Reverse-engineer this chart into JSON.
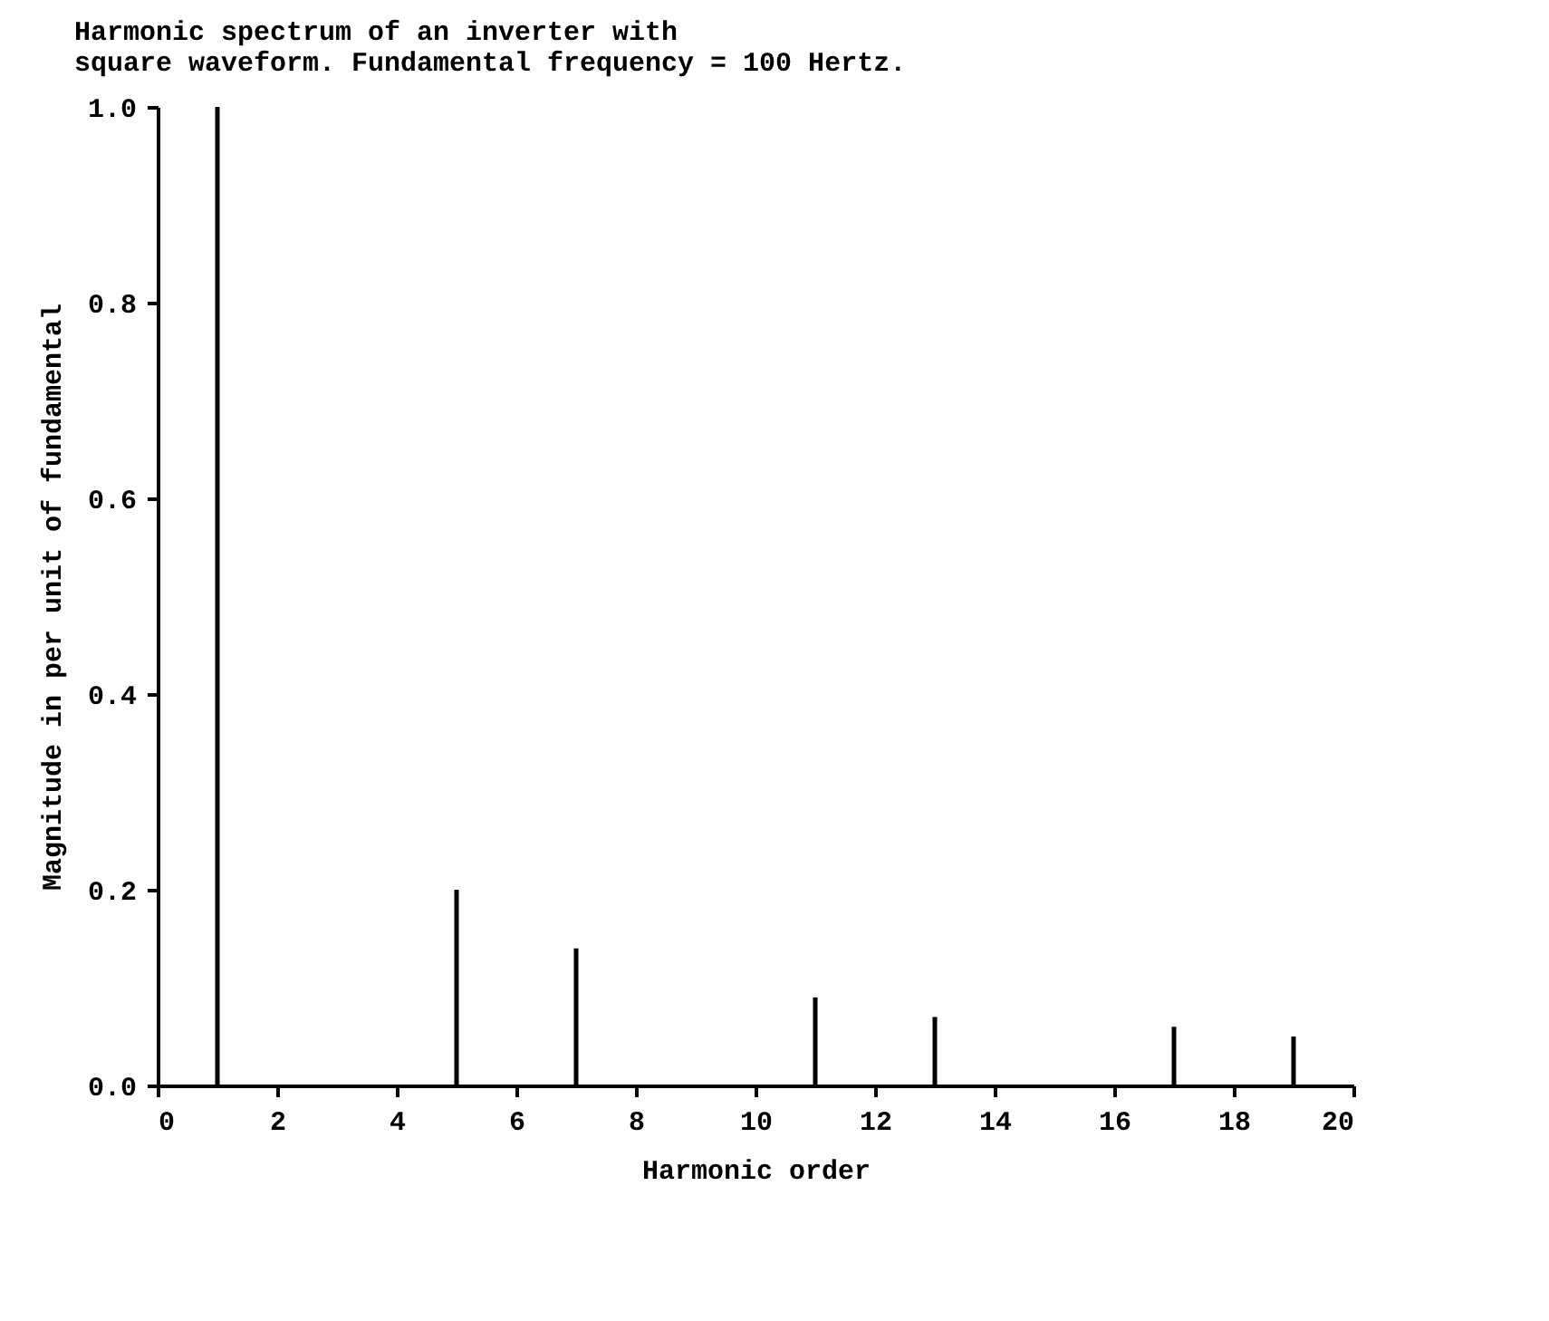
{
  "chart_data": {
    "type": "bar",
    "title": "Harmonic spectrum of an inverter with\nsquare waveform.  Fundamental frequency = 100 Hertz.",
    "xlabel": "Harmonic order",
    "ylabel": "Magnitude in per unit of fundamental",
    "x": [
      1,
      5,
      7,
      11,
      13,
      17,
      19
    ],
    "values": [
      1.0,
      0.2,
      0.14,
      0.09,
      0.07,
      0.06,
      0.05
    ],
    "color": "#000000",
    "xlim": [
      0,
      20
    ],
    "xticks": [
      0,
      2,
      4,
      6,
      8,
      10,
      12,
      14,
      16,
      18,
      20
    ],
    "ylim": [
      0,
      1.0
    ],
    "yticks": [
      {
        "value": 0,
        "label": "0.0"
      },
      {
        "value": 0.2,
        "label": "0.2"
      },
      {
        "value": 0.4,
        "label": "0.4"
      },
      {
        "value": 0.6,
        "label": "0.6"
      },
      {
        "value": 0.8,
        "label": "0.8"
      },
      {
        "value": 1.0,
        "label": "1.0"
      }
    ],
    "grid": false
  }
}
